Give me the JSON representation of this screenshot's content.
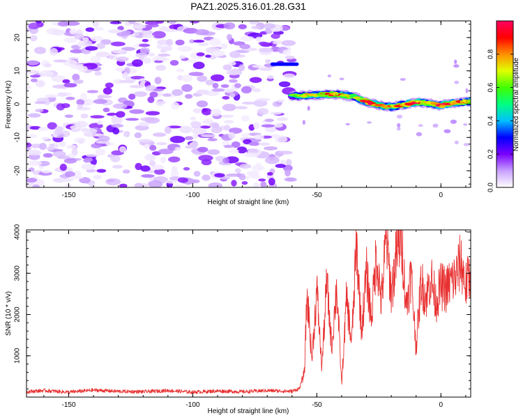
{
  "figure_title": "PAZ1.2025.316.01.28.G31",
  "chart_data": [
    {
      "type": "heatmap",
      "title": "PAZ1.2025.316.01.28.G31",
      "xlabel": "Height of straight line (km)",
      "ylabel": "Frequency (Hz)",
      "xlim": [
        -167,
        12
      ],
      "ylim": [
        -25,
        25
      ],
      "x_ticks": [
        -150,
        -100,
        -50,
        0
      ],
      "y_ticks": [
        -20,
        -10,
        0,
        10,
        20
      ],
      "x_tick_labels": [
        "-150",
        "-100",
        "-50",
        "0"
      ],
      "y_tick_labels": [
        "-20",
        "-10",
        "0",
        "10",
        "20"
      ],
      "description_of_content": "noise region for heights below about -60 km; coherent signal near 0 Hz above -60 km",
      "noise_region_x": [
        -167,
        -60
      ],
      "narrowband_line": {
        "x": [
          -68,
          -58
        ],
        "freq_hz": 12,
        "amplitude": 0.3
      },
      "signal_ridge": {
        "x": [
          -60,
          -55,
          -50,
          -45,
          -40,
          -35,
          -30,
          -25,
          -20,
          -15,
          -10,
          -5,
          0,
          5,
          12
        ],
        "freq_hz": [
          2.5,
          2.6,
          2.7,
          3.0,
          2.8,
          2.2,
          0.8,
          -0.3,
          -0.8,
          -0.2,
          0.6,
          0.3,
          -0.4,
          0.4,
          0.8
        ],
        "amplitude": [
          0.55,
          0.7,
          0.7,
          0.85,
          0.8,
          0.65,
          0.95,
          0.8,
          0.75,
          0.85,
          0.9,
          0.8,
          0.95,
          0.9,
          0.85
        ]
      },
      "colorbar": {
        "label": "Normalized spectral amplitude",
        "range": [
          0,
          1
        ],
        "ticks": [
          0.0,
          0.2,
          0.4,
          0.6,
          0.8
        ],
        "tick_labels": [
          "0.0",
          "0.2",
          "0.4",
          "0.6",
          "0.8"
        ],
        "colors": [
          "#ffffff",
          "#c8a0ff",
          "#7a00ff",
          "#0000ff",
          "#00c0ff",
          "#00ff80",
          "#40ff00",
          "#e0ff00",
          "#ff9000",
          "#ff0000",
          "#ff0060"
        ]
      }
    },
    {
      "type": "line",
      "xlabel": "Height of straight line (km)",
      "ylabel": "SNR (10 * v/v)",
      "xlim": [
        -167,
        12
      ],
      "ylim": [
        0,
        4050
      ],
      "x_ticks": [
        -150,
        -100,
        -50,
        0
      ],
      "y_ticks": [
        1000,
        2000,
        3000,
        4000
      ],
      "x_tick_labels": [
        "-150",
        "-100",
        "-50",
        "0"
      ],
      "y_tick_labels": [
        "1000",
        "2000",
        "3000",
        "4000"
      ],
      "series": [
        {
          "name": "SNR",
          "color": "#e83030",
          "x": [
            -167,
            -160,
            -150,
            -140,
            -130,
            -120,
            -110,
            -100,
            -90,
            -80,
            -70,
            -60,
            -57,
            -55,
            -54,
            -53,
            -52,
            -50,
            -48,
            -46,
            -44,
            -42,
            -40,
            -38,
            -36,
            -34,
            -32,
            -30,
            -28,
            -26,
            -24,
            -22,
            -20,
            -18,
            -16,
            -14,
            -12,
            -10,
            -8,
            -6,
            -4,
            -2,
            0,
            2,
            4,
            6,
            8,
            10,
            12
          ],
          "values": [
            120,
            150,
            110,
            160,
            130,
            120,
            150,
            110,
            140,
            120,
            150,
            130,
            200,
            600,
            2500,
            1800,
            900,
            2600,
            700,
            2800,
            1200,
            2700,
            300,
            2400,
            1300,
            3700,
            1600,
            3000,
            1900,
            3500,
            2300,
            3900,
            2500,
            3400,
            4000,
            2200,
            3000,
            1200,
            2800,
            2400,
            2900,
            2300,
            2700,
            2600,
            2800,
            2900,
            3300,
            2700,
            3000
          ]
        }
      ]
    }
  ]
}
